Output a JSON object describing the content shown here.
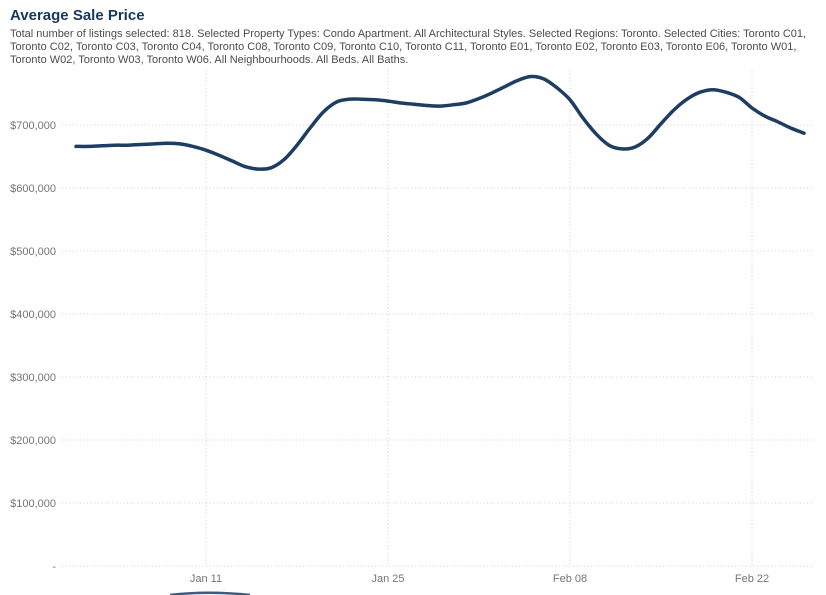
{
  "header": {
    "title": "Average Sale Price",
    "subtitle": "Total number of listings selected: 818. Selected Property Types: Condo Apartment. All Architectural Styles. Selected Regions: Toronto. Selected Cities: Toronto C01, Toronto C02, Toronto C03, Toronto C04, Toronto C08, Toronto C09, Toronto C10, Toronto C11, Toronto E01, Toronto E02, Toronto E03, Toronto E06, Toronto W01, Toronto W02, Toronto W03, Toronto W06. All Neighbourhoods. All Beds. All Baths."
  },
  "colors": {
    "title": "#17375e",
    "subtitle": "#4c4c4c",
    "axis_label": "#757575",
    "gridline": "#cccccc",
    "line": "#1d3d63"
  },
  "chart_data": {
    "type": "line",
    "title": "Average Sale Price",
    "xlabel": "",
    "ylabel": "",
    "legend": "none",
    "grid": "dotted",
    "ylim": [
      0,
      780000
    ],
    "x_range": [
      "Jan 1",
      "Feb 26"
    ],
    "y_ticks": [
      {
        "value": 0,
        "label": "-"
      },
      {
        "value": 100000,
        "label": "$100,000"
      },
      {
        "value": 200000,
        "label": "$200,000"
      },
      {
        "value": 300000,
        "label": "$300,000"
      },
      {
        "value": 400000,
        "label": "$400,000"
      },
      {
        "value": 500000,
        "label": "$500,000"
      },
      {
        "value": 600000,
        "label": "$600,000"
      },
      {
        "value": 700000,
        "label": "$700,000"
      }
    ],
    "x_ticks": [
      {
        "label": "Jan 11",
        "day": 10
      },
      {
        "label": "Jan 25",
        "day": 24
      },
      {
        "label": "Feb 08",
        "day": 38
      },
      {
        "label": "Feb 22",
        "day": 52
      }
    ],
    "series": [
      {
        "name": "Average Sale Price",
        "points": [
          {
            "date": "Jan 1",
            "value": 666000
          },
          {
            "date": "Jan 2",
            "value": 666000
          },
          {
            "date": "Jan 3",
            "value": 667000
          },
          {
            "date": "Jan 4",
            "value": 668000
          },
          {
            "date": "Jan 5",
            "value": 668000
          },
          {
            "date": "Jan 6",
            "value": 669000
          },
          {
            "date": "Jan 7",
            "value": 670000
          },
          {
            "date": "Jan 8",
            "value": 671000
          },
          {
            "date": "Jan 9",
            "value": 670000
          },
          {
            "date": "Jan 10",
            "value": 666000
          },
          {
            "date": "Jan 11",
            "value": 660000
          },
          {
            "date": "Jan 12",
            "value": 652000
          },
          {
            "date": "Jan 13",
            "value": 643000
          },
          {
            "date": "Jan 14",
            "value": 634000
          },
          {
            "date": "Jan 15",
            "value": 630000
          },
          {
            "date": "Jan 16",
            "value": 632000
          },
          {
            "date": "Jan 17",
            "value": 645000
          },
          {
            "date": "Jan 18",
            "value": 668000
          },
          {
            "date": "Jan 19",
            "value": 695000
          },
          {
            "date": "Jan 20",
            "value": 720000
          },
          {
            "date": "Jan 21",
            "value": 736000
          },
          {
            "date": "Jan 22",
            "value": 741000
          },
          {
            "date": "Jan 23",
            "value": 741000
          },
          {
            "date": "Jan 24",
            "value": 740000
          },
          {
            "date": "Jan 25",
            "value": 738000
          },
          {
            "date": "Jan 26",
            "value": 735000
          },
          {
            "date": "Jan 27",
            "value": 733000
          },
          {
            "date": "Jan 28",
            "value": 731000
          },
          {
            "date": "Jan 29",
            "value": 730000
          },
          {
            "date": "Jan 30",
            "value": 732000
          },
          {
            "date": "Jan 31",
            "value": 735000
          },
          {
            "date": "Feb 1",
            "value": 742000
          },
          {
            "date": "Feb 2",
            "value": 751000
          },
          {
            "date": "Feb 3",
            "value": 761000
          },
          {
            "date": "Feb 4",
            "value": 771000
          },
          {
            "date": "Feb 5",
            "value": 777000
          },
          {
            "date": "Feb 6",
            "value": 773000
          },
          {
            "date": "Feb 7",
            "value": 759000
          },
          {
            "date": "Feb 8",
            "value": 740000
          },
          {
            "date": "Feb 9",
            "value": 711000
          },
          {
            "date": "Feb 10",
            "value": 686000
          },
          {
            "date": "Feb 11",
            "value": 668000
          },
          {
            "date": "Feb 12",
            "value": 662000
          },
          {
            "date": "Feb 13",
            "value": 665000
          },
          {
            "date": "Feb 14",
            "value": 679000
          },
          {
            "date": "Feb 15",
            "value": 702000
          },
          {
            "date": "Feb 16",
            "value": 724000
          },
          {
            "date": "Feb 17",
            "value": 741000
          },
          {
            "date": "Feb 18",
            "value": 752000
          },
          {
            "date": "Feb 19",
            "value": 756000
          },
          {
            "date": "Feb 20",
            "value": 752000
          },
          {
            "date": "Feb 21",
            "value": 744000
          },
          {
            "date": "Feb 22",
            "value": 727000
          },
          {
            "date": "Feb 23",
            "value": 714000
          },
          {
            "date": "Feb 24",
            "value": 705000
          },
          {
            "date": "Feb 25",
            "value": 695000
          },
          {
            "date": "Feb 26",
            "value": 687000
          }
        ]
      }
    ]
  }
}
